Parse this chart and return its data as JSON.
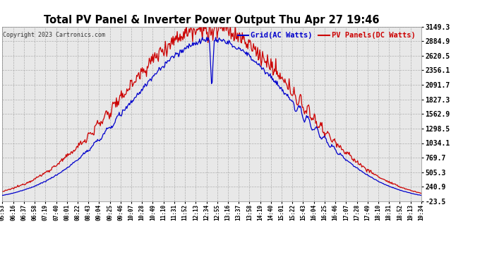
{
  "title": "Total PV Panel & Inverter Power Output Thu Apr 27 19:46",
  "copyright": "Copyright 2023 Cartronics.com",
  "legend_blue": "Grid(AC Watts)",
  "legend_red": "PV Panels(DC Watts)",
  "yticks": [
    3149.3,
    2884.9,
    2620.5,
    2356.1,
    2091.7,
    1827.3,
    1562.9,
    1298.5,
    1034.1,
    769.7,
    505.3,
    240.9,
    -23.5
  ],
  "ylim": [
    -23.5,
    3149.3
  ],
  "bg_color": "#ffffff",
  "plot_bg_color": "#e8e8e8",
  "title_color": "#000000",
  "grid_color": "#aaaaaa",
  "line_blue_color": "#0000cc",
  "line_red_color": "#cc0000",
  "copyright_color": "#333333",
  "tick_color": "#000000",
  "xtick_labels": [
    "05:53",
    "06:16",
    "06:37",
    "06:58",
    "07:19",
    "07:40",
    "08:01",
    "08:22",
    "08:43",
    "09:04",
    "09:25",
    "09:46",
    "10:07",
    "10:28",
    "10:49",
    "11:10",
    "11:31",
    "11:52",
    "12:13",
    "12:34",
    "12:55",
    "13:16",
    "13:37",
    "13:58",
    "14:19",
    "14:40",
    "15:01",
    "15:22",
    "15:43",
    "16:04",
    "16:25",
    "16:46",
    "17:07",
    "17:28",
    "17:49",
    "18:10",
    "18:31",
    "18:52",
    "19:13",
    "19:34"
  ]
}
